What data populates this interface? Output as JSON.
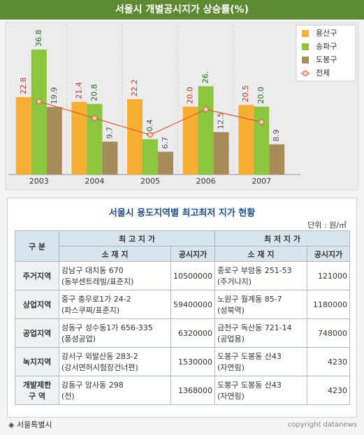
{
  "chart_data": {
    "type": "bar",
    "title": "서울시 개별공시지가 상승률(%)",
    "categories": [
      "2003",
      "2004",
      "2005",
      "2006",
      "2007"
    ],
    "ylim": [
      0,
      44
    ],
    "legend": "top-right",
    "series": [
      {
        "name": "용산구",
        "color": "#f7ae35",
        "values": [
          22.8,
          21.4,
          22.2,
          20.0,
          20.5
        ],
        "value_labels": [
          "22.8",
          "21.4",
          "22.2",
          "20.0",
          "20.5"
        ]
      },
      {
        "name": "송파구",
        "color": "#8cc63f",
        "values": [
          36.8,
          20.8,
          10.4,
          26,
          20.0
        ],
        "value_labels": [
          "36.8",
          "20.8",
          "10.4",
          "26.",
          "20.0"
        ]
      },
      {
        "name": "도봉구",
        "color": "#a68b5b",
        "values": [
          19.9,
          9.7,
          6.7,
          12.5,
          8.9
        ],
        "value_labels": [
          "19.9",
          "9.7",
          "6.7",
          "12.5",
          "8.9"
        ]
      },
      {
        "name": "전체",
        "type": "line",
        "color": "#e4572e",
        "values": [
          21.5,
          16.6,
          11.7,
          19.2,
          15.5
        ]
      }
    ]
  },
  "table": {
    "title": "서울시 용도지역별 최고최저 지가 현황",
    "unit": "단위 : 원/㎡",
    "header": {
      "category": "구  분",
      "max": "최 고 지 가",
      "min": "최 저 지 가",
      "location": "소 재 지",
      "price": "공시지가"
    },
    "rows": [
      [
        [
          "주거지역"
        ],
        [
          "강남구 대치동 670",
          "(동부센트레빌/표준지)"
        ],
        "10500000",
        [
          "종로구 부암동 251-53",
          "(주거나지)"
        ],
        "121000"
      ],
      [
        [
          "상업지역"
        ],
        [
          "중구 충무로1가 24-2",
          "(파스쿠찌/표준지)"
        ],
        "59400000",
        [
          "노원구 월계동 85-7",
          "(성북역)"
        ],
        "1180000"
      ],
      [
        [
          "공업지역"
        ],
        [
          "성동구 성수동1가 656-335",
          "(풍성공업)"
        ],
        "6320000",
        [
          "금천구 독산동 721-14",
          "(공업용)"
        ],
        "748000"
      ],
      [
        [
          "녹지지역"
        ],
        [
          "강서구 외발산동 283-2",
          "(강서면허시험장건너편)"
        ],
        "1530000",
        [
          "도봉구 도봉동 산43",
          "(자연림)"
        ],
        "4230"
      ],
      [
        [
          "개발제한",
          "구    역"
        ],
        [
          "강동구 암사동 298",
          "(전)"
        ],
        "1368000",
        [
          "도봉구 도봉동 산43",
          "(자연림)"
        ],
        "4230"
      ]
    ]
  },
  "footer": {
    "source": "◈ 서울특별시",
    "copyright": "copyright datanews"
  }
}
